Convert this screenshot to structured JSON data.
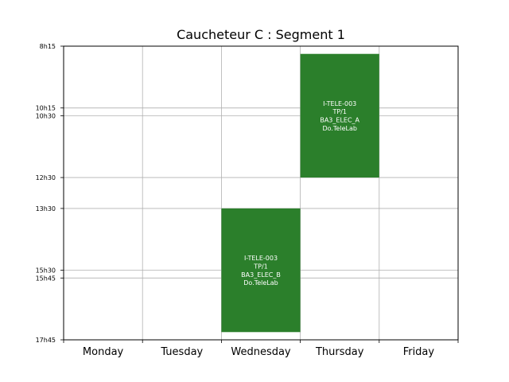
{
  "chart_data": {
    "type": "table",
    "title": "Caucheteur C : Segment 1",
    "days": [
      "Monday",
      "Tuesday",
      "Wednesday",
      "Thursday",
      "Friday"
    ],
    "y_ticks": [
      "8h15",
      "10h15",
      "10h30",
      "12h30",
      "13h30",
      "15h30",
      "15h45",
      "17h45"
    ],
    "ylim": [
      "8h15",
      "17h45"
    ],
    "grid": true,
    "event_color": "#2b7f2b",
    "events": [
      {
        "day": "Wednesday",
        "start": "13h30",
        "end": "17h30",
        "lines": [
          "I-TELE-003",
          "TP/1",
          "BA3_ELEC_B",
          "Do.TeleLab"
        ]
      },
      {
        "day": "Thursday",
        "start": "8h30",
        "end": "12h30",
        "lines": [
          "I-TELE-003",
          "TP/1",
          "BA3_ELEC_A",
          "Do.TeleLab"
        ]
      }
    ]
  }
}
